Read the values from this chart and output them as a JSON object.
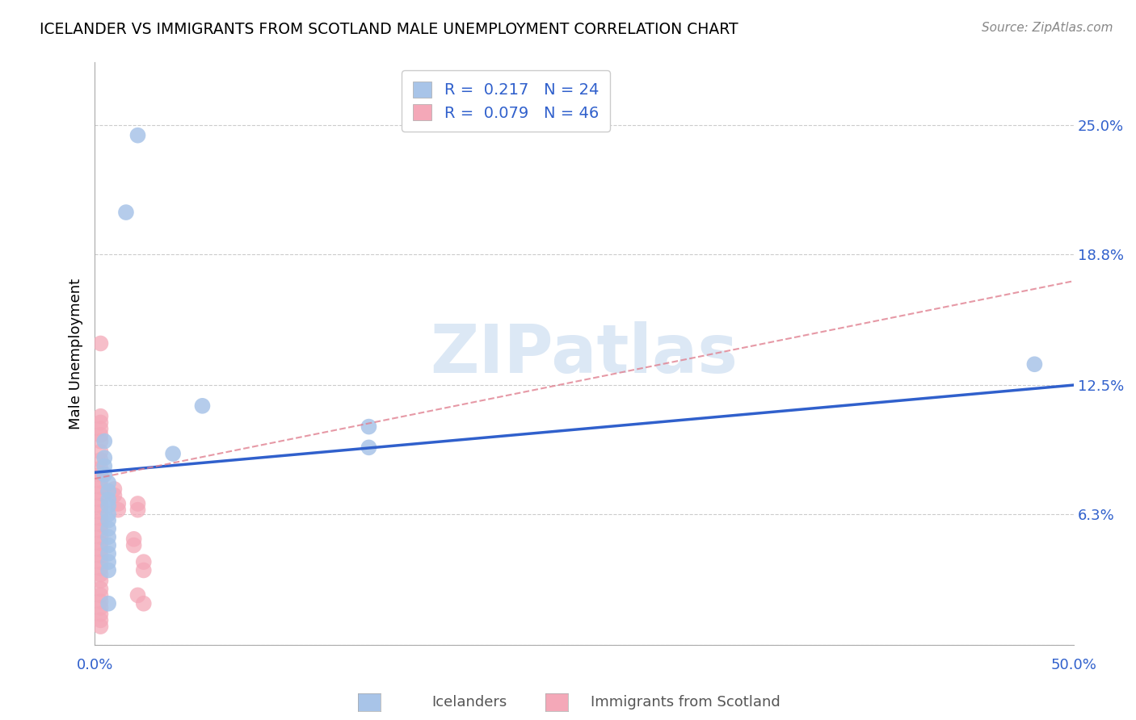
{
  "title": "ICELANDER VS IMMIGRANTS FROM SCOTLAND MALE UNEMPLOYMENT CORRELATION CHART",
  "source": "Source: ZipAtlas.com",
  "ylabel": "Male Unemployment",
  "yticks": [
    0.0,
    0.063,
    0.125,
    0.188,
    0.25
  ],
  "ytick_labels": [
    "",
    "6.3%",
    "12.5%",
    "18.8%",
    "25.0%"
  ],
  "xlim": [
    0.0,
    0.5
  ],
  "ylim": [
    0.0,
    0.28
  ],
  "icelanders_color": "#a8c4e8",
  "immigrants_color": "#f4a8b8",
  "trend_blue": "#3060cc",
  "trend_pink": "#e08090",
  "text_blue": "#3060cc",
  "watermark_color": "#dce8f5",
  "icelanders": [
    [
      0.022,
      0.245
    ],
    [
      0.016,
      0.208
    ],
    [
      0.055,
      0.115
    ],
    [
      0.04,
      0.092
    ],
    [
      0.14,
      0.105
    ],
    [
      0.14,
      0.095
    ],
    [
      0.005,
      0.098
    ],
    [
      0.005,
      0.09
    ],
    [
      0.005,
      0.086
    ],
    [
      0.005,
      0.082
    ],
    [
      0.007,
      0.078
    ],
    [
      0.007,
      0.074
    ],
    [
      0.007,
      0.07
    ],
    [
      0.007,
      0.067
    ],
    [
      0.007,
      0.063
    ],
    [
      0.007,
      0.06
    ],
    [
      0.007,
      0.056
    ],
    [
      0.007,
      0.052
    ],
    [
      0.007,
      0.048
    ],
    [
      0.007,
      0.044
    ],
    [
      0.007,
      0.04
    ],
    [
      0.007,
      0.036
    ],
    [
      0.007,
      0.02
    ],
    [
      0.48,
      0.135
    ]
  ],
  "immigrants": [
    [
      0.003,
      0.145
    ],
    [
      0.003,
      0.11
    ],
    [
      0.003,
      0.107
    ],
    [
      0.003,
      0.104
    ],
    [
      0.003,
      0.101
    ],
    [
      0.003,
      0.098
    ],
    [
      0.003,
      0.093
    ],
    [
      0.003,
      0.089
    ],
    [
      0.003,
      0.085
    ],
    [
      0.003,
      0.082
    ],
    [
      0.003,
      0.079
    ],
    [
      0.003,
      0.076
    ],
    [
      0.003,
      0.073
    ],
    [
      0.003,
      0.07
    ],
    [
      0.003,
      0.067
    ],
    [
      0.003,
      0.064
    ],
    [
      0.003,
      0.061
    ],
    [
      0.003,
      0.058
    ],
    [
      0.003,
      0.055
    ],
    [
      0.003,
      0.052
    ],
    [
      0.003,
      0.049
    ],
    [
      0.003,
      0.046
    ],
    [
      0.003,
      0.043
    ],
    [
      0.003,
      0.04
    ],
    [
      0.003,
      0.037
    ],
    [
      0.003,
      0.034
    ],
    [
      0.003,
      0.031
    ],
    [
      0.003,
      0.027
    ],
    [
      0.003,
      0.024
    ],
    [
      0.003,
      0.021
    ],
    [
      0.003,
      0.018
    ],
    [
      0.003,
      0.015
    ],
    [
      0.003,
      0.012
    ],
    [
      0.003,
      0.009
    ],
    [
      0.01,
      0.075
    ],
    [
      0.01,
      0.072
    ],
    [
      0.012,
      0.068
    ],
    [
      0.012,
      0.065
    ],
    [
      0.02,
      0.051
    ],
    [
      0.02,
      0.048
    ],
    [
      0.022,
      0.068
    ],
    [
      0.022,
      0.065
    ],
    [
      0.025,
      0.04
    ],
    [
      0.025,
      0.036
    ],
    [
      0.022,
      0.024
    ],
    [
      0.025,
      0.02
    ]
  ]
}
